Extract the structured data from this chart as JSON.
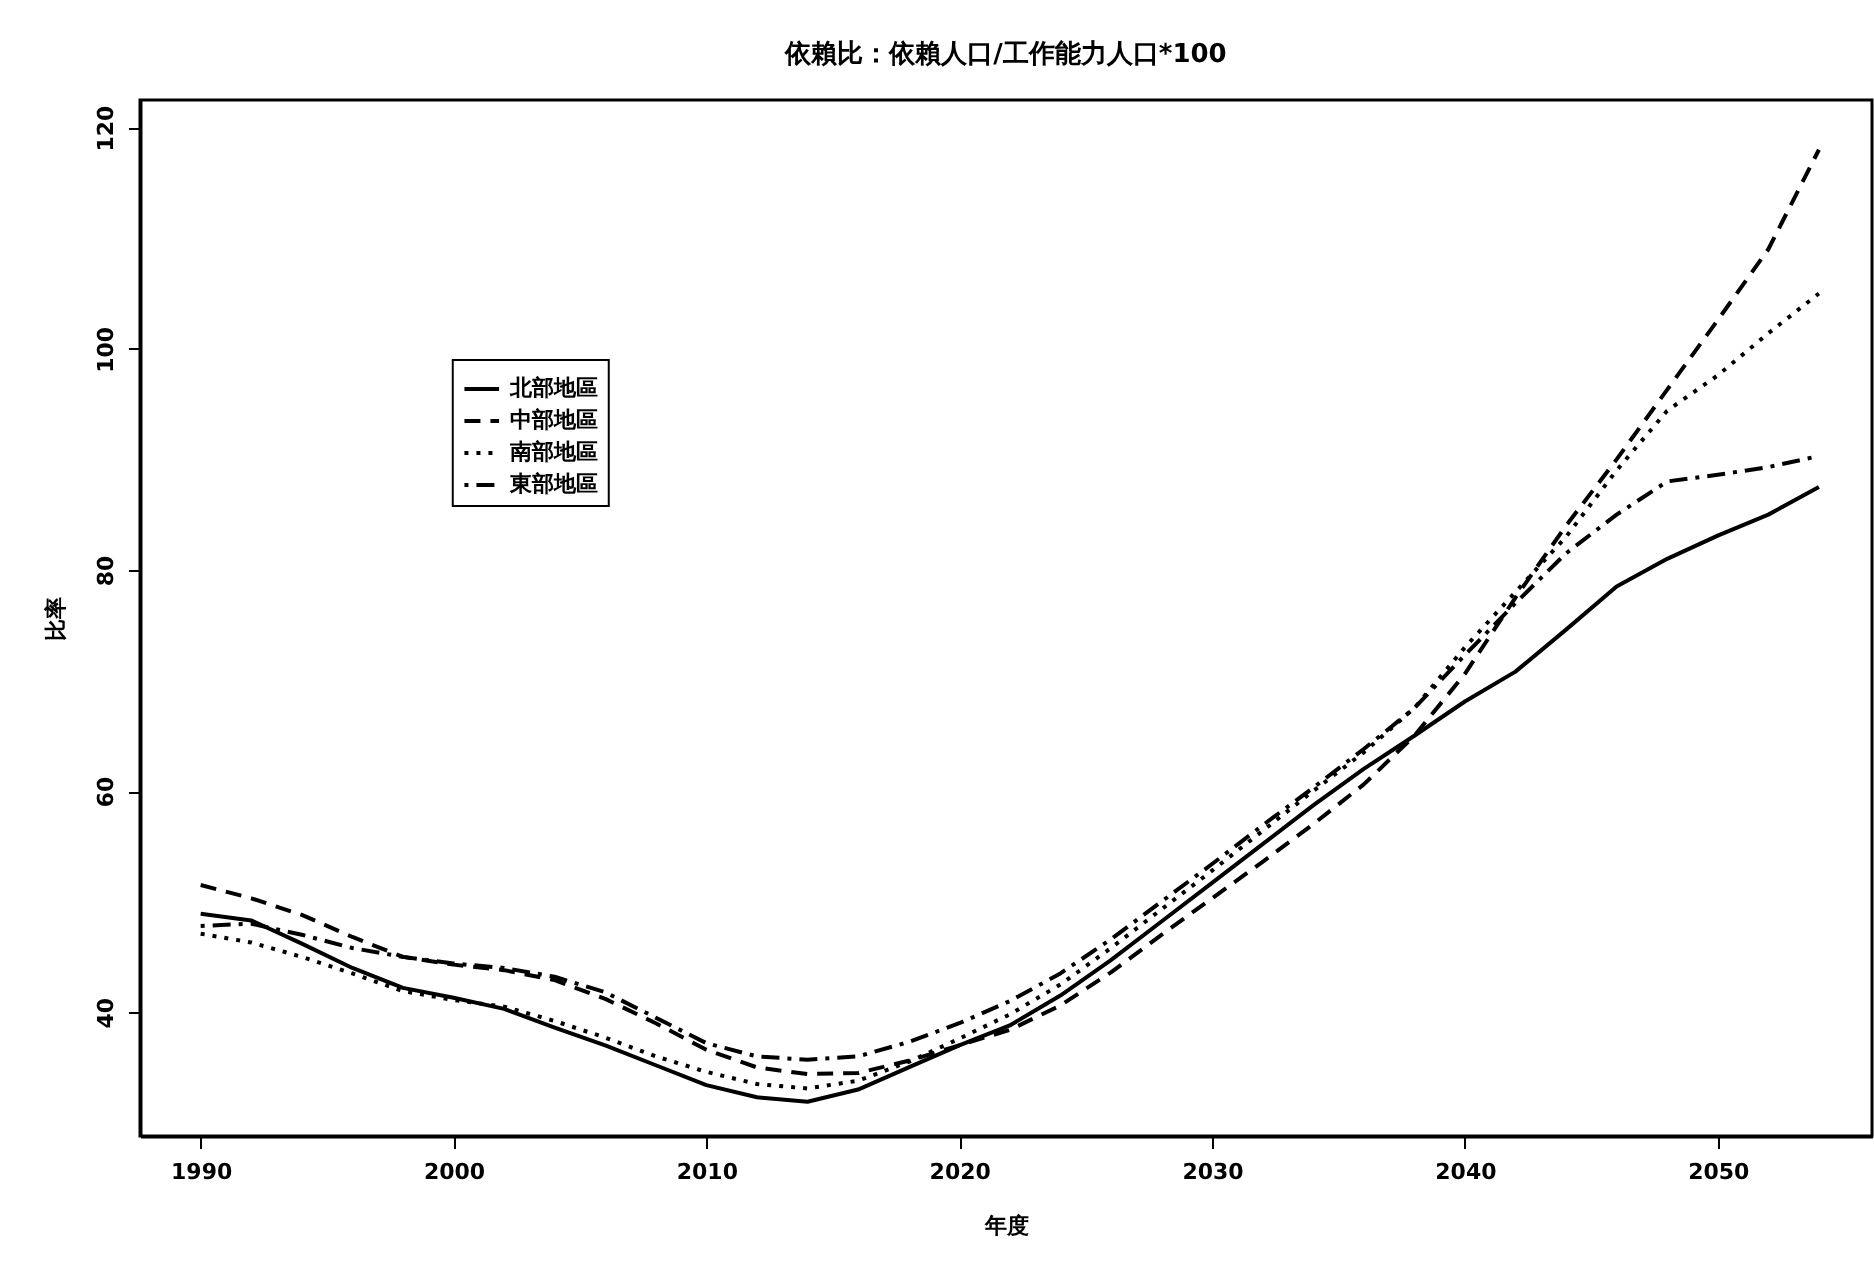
{
  "chart_data": {
    "type": "line",
    "title": "依賴比：依賴人口/工作能力人口*100",
    "xlabel": "年度",
    "ylabel": "比率",
    "x": [
      1990,
      1992,
      1994,
      1996,
      1998,
      2000,
      2002,
      2004,
      2006,
      2008,
      2010,
      2012,
      2014,
      2016,
      2018,
      2020,
      2022,
      2024,
      2026,
      2028,
      2030,
      2032,
      2034,
      2036,
      2038,
      2040,
      2042,
      2044,
      2046,
      2048,
      2050,
      2052,
      2054
    ],
    "series": [
      {
        "name": "北部地區",
        "color": "#000000",
        "line_style": "solid",
        "values": [
          48.9,
          48.3,
          46.2,
          44.0,
          42.2,
          41.3,
          40.3,
          38.6,
          37.0,
          35.2,
          33.4,
          32.3,
          31.9,
          33.0,
          35.0,
          37.0,
          38.8,
          41.5,
          44.7,
          48.2,
          51.7,
          55.2,
          58.7,
          62.0,
          65.0,
          68.1,
          70.8,
          74.6,
          78.5,
          81.0,
          83.1,
          85.0,
          87.5
        ]
      },
      {
        "name": "中部地區",
        "color": "#000000",
        "line_style": "dashed",
        "values": [
          51.5,
          50.3,
          48.8,
          46.8,
          45.0,
          44.3,
          43.8,
          42.9,
          41.2,
          39.0,
          36.6,
          35.0,
          34.4,
          34.5,
          35.6,
          37.0,
          38.4,
          40.6,
          43.6,
          47.0,
          50.3,
          53.6,
          57.0,
          60.6,
          65.0,
          70.6,
          77.5,
          84.0,
          90.0,
          96.3,
          102.6,
          109.0,
          118.0
        ]
      },
      {
        "name": "南部地區",
        "color": "#000000",
        "line_style": "dotted",
        "values": [
          47.1,
          46.3,
          45.0,
          43.5,
          41.9,
          41.1,
          40.5,
          39.2,
          37.7,
          36.0,
          34.6,
          33.5,
          33.1,
          33.8,
          35.5,
          37.6,
          39.8,
          42.5,
          45.8,
          49.3,
          52.8,
          56.4,
          60.0,
          63.5,
          67.5,
          73.0,
          78.0,
          83.0,
          89.0,
          94.4,
          97.6,
          101.4,
          105.0
        ]
      },
      {
        "name": "東部地區",
        "color": "#000000",
        "line_style": "dashdot",
        "values": [
          47.8,
          48.0,
          47.0,
          45.8,
          45.0,
          44.4,
          44.0,
          43.2,
          41.8,
          39.5,
          37.2,
          36.0,
          35.7,
          36.0,
          37.3,
          39.0,
          41.0,
          43.5,
          46.6,
          50.0,
          53.4,
          56.9,
          60.3,
          63.8,
          67.5,
          72.3,
          77.0,
          81.5,
          85.0,
          88.0,
          88.6,
          89.3,
          90.3
        ]
      }
    ],
    "xlim": [
      1987.6,
      2056.1
    ],
    "ylim": [
      28.8,
      122.5
    ],
    "xticks": [
      1990,
      2000,
      2010,
      2020,
      2030,
      2040,
      2050
    ],
    "yticks": [
      40,
      60,
      80,
      100,
      120
    ],
    "legend": "top left"
  }
}
